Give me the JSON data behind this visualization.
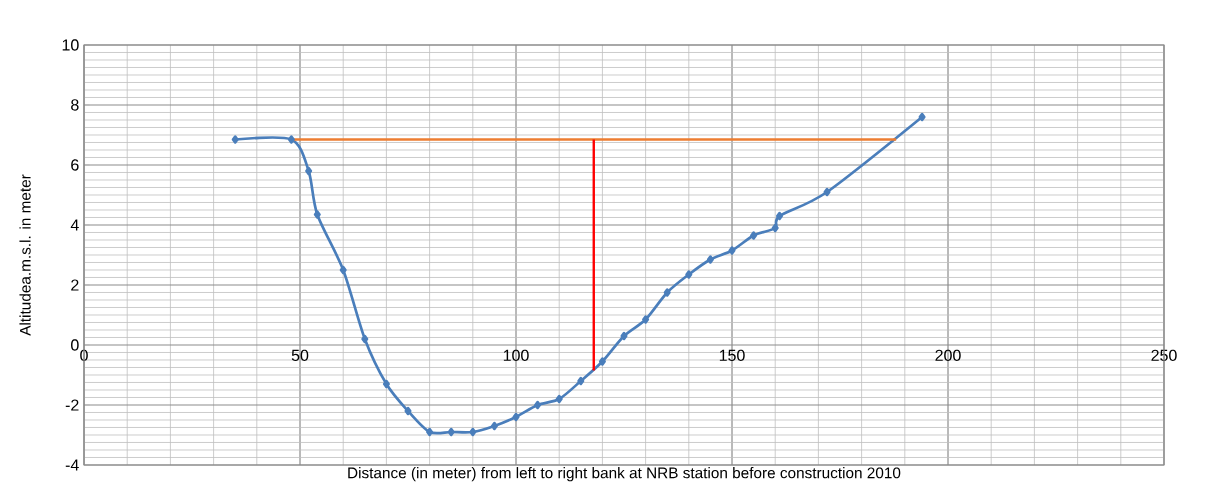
{
  "chart_data": {
    "type": "line",
    "xlabel": "Distance (in meter) from left to right bank at NRB station before construction 2010",
    "ylabel": "Altitudea.m.s.l. in meter",
    "xlim": [
      0,
      250
    ],
    "ylim": [
      -4,
      10
    ],
    "xticks": [
      0,
      50,
      100,
      150,
      200,
      250
    ],
    "yticks": [
      -4,
      -2,
      0,
      2,
      4,
      6,
      8,
      10
    ],
    "grid": true,
    "marker": "diamond",
    "x": [
      35,
      48,
      52,
      54,
      60,
      65,
      70,
      75,
      80,
      85,
      90,
      95,
      100,
      105,
      110,
      115,
      120,
      125,
      130,
      135,
      140,
      145,
      150,
      155,
      160,
      161,
      172,
      194
    ],
    "series": [
      {
        "color": "#4a7ebb",
        "values": [
          6.85,
          6.85,
          5.8,
          4.35,
          2.5,
          0.2,
          -1.3,
          -2.2,
          -2.9,
          -2.9,
          -2.9,
          -2.7,
          -2.4,
          -2.0,
          -1.8,
          -1.2,
          -0.55,
          0.3,
          0.85,
          1.75,
          2.35,
          2.85,
          3.15,
          3.65,
          3.9,
          4.3,
          5.1,
          7.6
        ]
      },
      {
        "type": "line",
        "marker": "none",
        "color": "#ed7d31",
        "x": [
          48,
          188
        ],
        "values": [
          6.85,
          6.85
        ]
      },
      {
        "type": "line",
        "marker": "none",
        "color": "#ff0000",
        "x": [
          118,
          118
        ],
        "values": [
          -0.85,
          6.85
        ]
      }
    ]
  }
}
